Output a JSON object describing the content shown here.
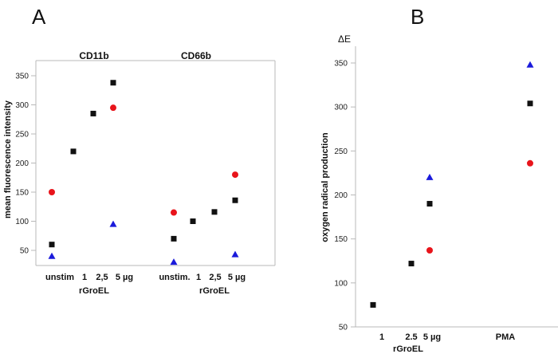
{
  "chart_data": [
    {
      "panel": "A",
      "type": "scatter",
      "ylabel": "mean fluorescence intensity",
      "ylim": [
        40,
        365
      ],
      "yticks": [
        50,
        100,
        150,
        200,
        250,
        300,
        350
      ],
      "groups": [
        {
          "title": "CD11b",
          "category_labels": [
            "unstim",
            "1",
            "2,5",
            "5 µg"
          ],
          "xlabel": "rGroEL",
          "series": [
            {
              "name": "black squares",
              "color": "#111111",
              "marker": "square",
              "values": [
                60,
                220,
                285,
                338
              ]
            },
            {
              "name": "red circles",
              "color": "#e8141b",
              "marker": "circle",
              "values": [
                150,
                null,
                null,
                295
              ]
            },
            {
              "name": "blue triangles",
              "color": "#1a1adb",
              "marker": "triangle",
              "values": [
                40,
                null,
                null,
                95
              ]
            }
          ]
        },
        {
          "title": "CD66b",
          "category_labels": [
            "unstim.",
            "1",
            "2,5",
            "5 µg"
          ],
          "xlabel": "rGroEL",
          "series": [
            {
              "name": "black squares",
              "color": "#111111",
              "marker": "square",
              "values": [
                70,
                100,
                116,
                136
              ]
            },
            {
              "name": "red circles",
              "color": "#e8141b",
              "marker": "circle",
              "values": [
                115,
                null,
                null,
                180
              ]
            },
            {
              "name": "blue triangles",
              "color": "#1a1adb",
              "marker": "triangle",
              "values": [
                30,
                null,
                null,
                43
              ]
            }
          ]
        }
      ]
    },
    {
      "panel": "B",
      "type": "scatter",
      "unit_label": "ΔE",
      "ylabel": "oxygen radical production",
      "ylim": [
        50,
        365
      ],
      "yticks": [
        50,
        100,
        150,
        200,
        250,
        300,
        350
      ],
      "category_labels": [
        "1",
        "2.5",
        "5 µg",
        "PMA"
      ],
      "xlabel": "rGroEL",
      "series": [
        {
          "name": "black squares",
          "color": "#111111",
          "marker": "square",
          "values": [
            75,
            122,
            190,
            304
          ]
        },
        {
          "name": "red circles",
          "color": "#e8141b",
          "marker": "circle",
          "values": [
            null,
            null,
            137,
            236
          ]
        },
        {
          "name": "blue triangles",
          "color": "#1a1adb",
          "marker": "triangle",
          "values": [
            null,
            null,
            220,
            348
          ]
        }
      ]
    }
  ]
}
